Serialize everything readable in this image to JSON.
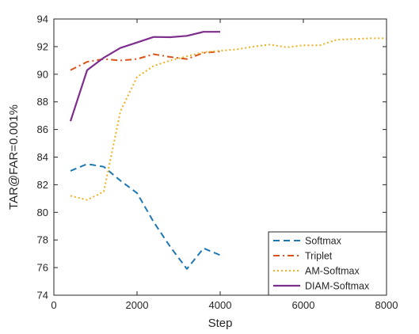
{
  "chart_data": {
    "type": "line",
    "xlabel": "Step",
    "ylabel": "TAR@FAR=0.001%",
    "xlim": [
      0,
      8000
    ],
    "ylim": [
      74,
      94
    ],
    "xticks": [
      0,
      2000,
      4000,
      6000,
      8000
    ],
    "yticks": [
      74,
      76,
      78,
      80,
      82,
      84,
      86,
      88,
      90,
      92,
      94
    ],
    "grid": false,
    "legend_position": "bottom-right",
    "series": [
      {
        "name": "Softmax",
        "color": "#1f77b4",
        "style": "dashed",
        "x": [
          400,
          800,
          1200,
          1600,
          2000,
          2400,
          2800,
          3200,
          3600,
          4000
        ],
        "y": [
          83.0,
          83.5,
          83.3,
          82.3,
          81.4,
          79.3,
          77.5,
          75.9,
          77.4,
          76.9
        ]
      },
      {
        "name": "Triplet",
        "color": "#d95319",
        "style": "dashdot",
        "x": [
          400,
          800,
          1200,
          1600,
          2000,
          2400,
          2800,
          3200,
          3600,
          4000
        ],
        "y": [
          90.3,
          90.9,
          91.1,
          91.0,
          91.1,
          91.45,
          91.25,
          91.1,
          91.55,
          91.65
        ]
      },
      {
        "name": "AM-Softmax",
        "color": "#edb120",
        "style": "dotted",
        "x": [
          400,
          800,
          1200,
          1600,
          2000,
          2400,
          2800,
          3200,
          3600,
          4000,
          4400,
          4800,
          5200,
          5600,
          6000,
          6400,
          6800,
          7200,
          7600,
          8000
        ],
        "y": [
          81.2,
          80.9,
          81.5,
          87.3,
          89.8,
          90.6,
          91.0,
          91.3,
          91.6,
          91.7,
          91.8,
          92.0,
          92.15,
          91.95,
          92.1,
          92.1,
          92.5,
          92.55,
          92.6,
          92.6
        ]
      },
      {
        "name": "DIAM-Softmax",
        "color": "#7e2f8e",
        "style": "solid",
        "x": [
          400,
          800,
          1200,
          1600,
          2000,
          2400,
          2800,
          3200,
          3600,
          4000
        ],
        "y": [
          86.6,
          90.3,
          91.2,
          91.9,
          92.3,
          92.7,
          92.68,
          92.78,
          93.07,
          93.07
        ]
      }
    ]
  }
}
